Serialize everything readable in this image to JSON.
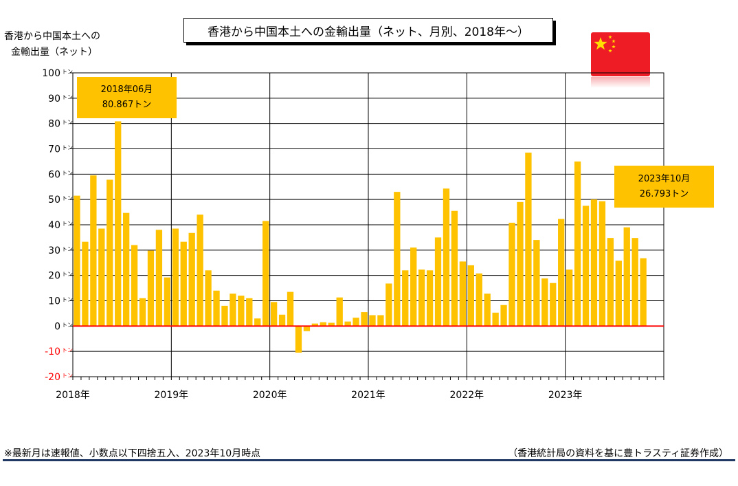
{
  "chart_data": {
    "type": "bar",
    "title": "香港から中国本土への金輸出量（ネット、月別、2018年～）",
    "ylabel_lines": [
      "香港から中国本土への",
      "金輸出量（ネット）"
    ],
    "y_unit": "トン",
    "ylim": [
      -20,
      100
    ],
    "yticks": [
      "100",
      "90",
      "80",
      "70",
      "60",
      "50",
      "40",
      "30",
      "20",
      "10",
      "0",
      "-10",
      "-20"
    ],
    "year_labels": [
      "2018年",
      "2019年",
      "2020年",
      "2021年",
      "2022年",
      "2023年"
    ],
    "grid": true,
    "bar_color": "#fec200",
    "zero_line_color": "#ff0000",
    "negative_tick_color": "#ff0000",
    "series": [
      {
        "values": [
          51.5,
          33.3,
          59.5,
          38.5,
          57.8,
          80.867,
          44.7,
          32.0,
          11.0,
          29.8,
          38.0,
          19.2,
          38.5,
          33.3,
          36.8,
          44.0,
          22.0,
          14.0,
          8.0,
          12.8,
          12.0,
          11.0,
          3.0,
          41.5,
          9.5,
          4.5,
          13.5,
          -10.5,
          -2.0,
          1.0,
          1.5,
          1.3,
          11.3,
          1.8,
          3.3,
          5.5,
          4.3,
          4.3,
          16.8,
          53.0,
          22.0,
          31.0,
          22.3,
          22.0,
          35.0,
          54.3,
          45.5,
          25.5,
          24.0,
          20.8,
          12.8,
          5.3,
          8.3,
          40.8,
          49.0,
          68.5,
          34.0,
          18.8,
          17.0,
          42.3,
          22.3,
          65.0,
          47.5,
          50.0,
          49.3,
          34.8,
          25.8,
          39.0,
          34.8,
          26.793
        ]
      }
    ],
    "annotations": [
      {
        "line1": "2018年06月",
        "line2": "80.867トン"
      },
      {
        "line1": "2023年10月",
        "line2": "26.793トン"
      }
    ]
  },
  "footnote": "※最新月は速報値、小数点以下四捨五入、2023年10月時点",
  "source": "（香港統計局の資料を基に豊トラスティ証券作成）",
  "flag": {
    "name": "china-flag",
    "red": "#ee1c25",
    "star": "#ffde00"
  }
}
